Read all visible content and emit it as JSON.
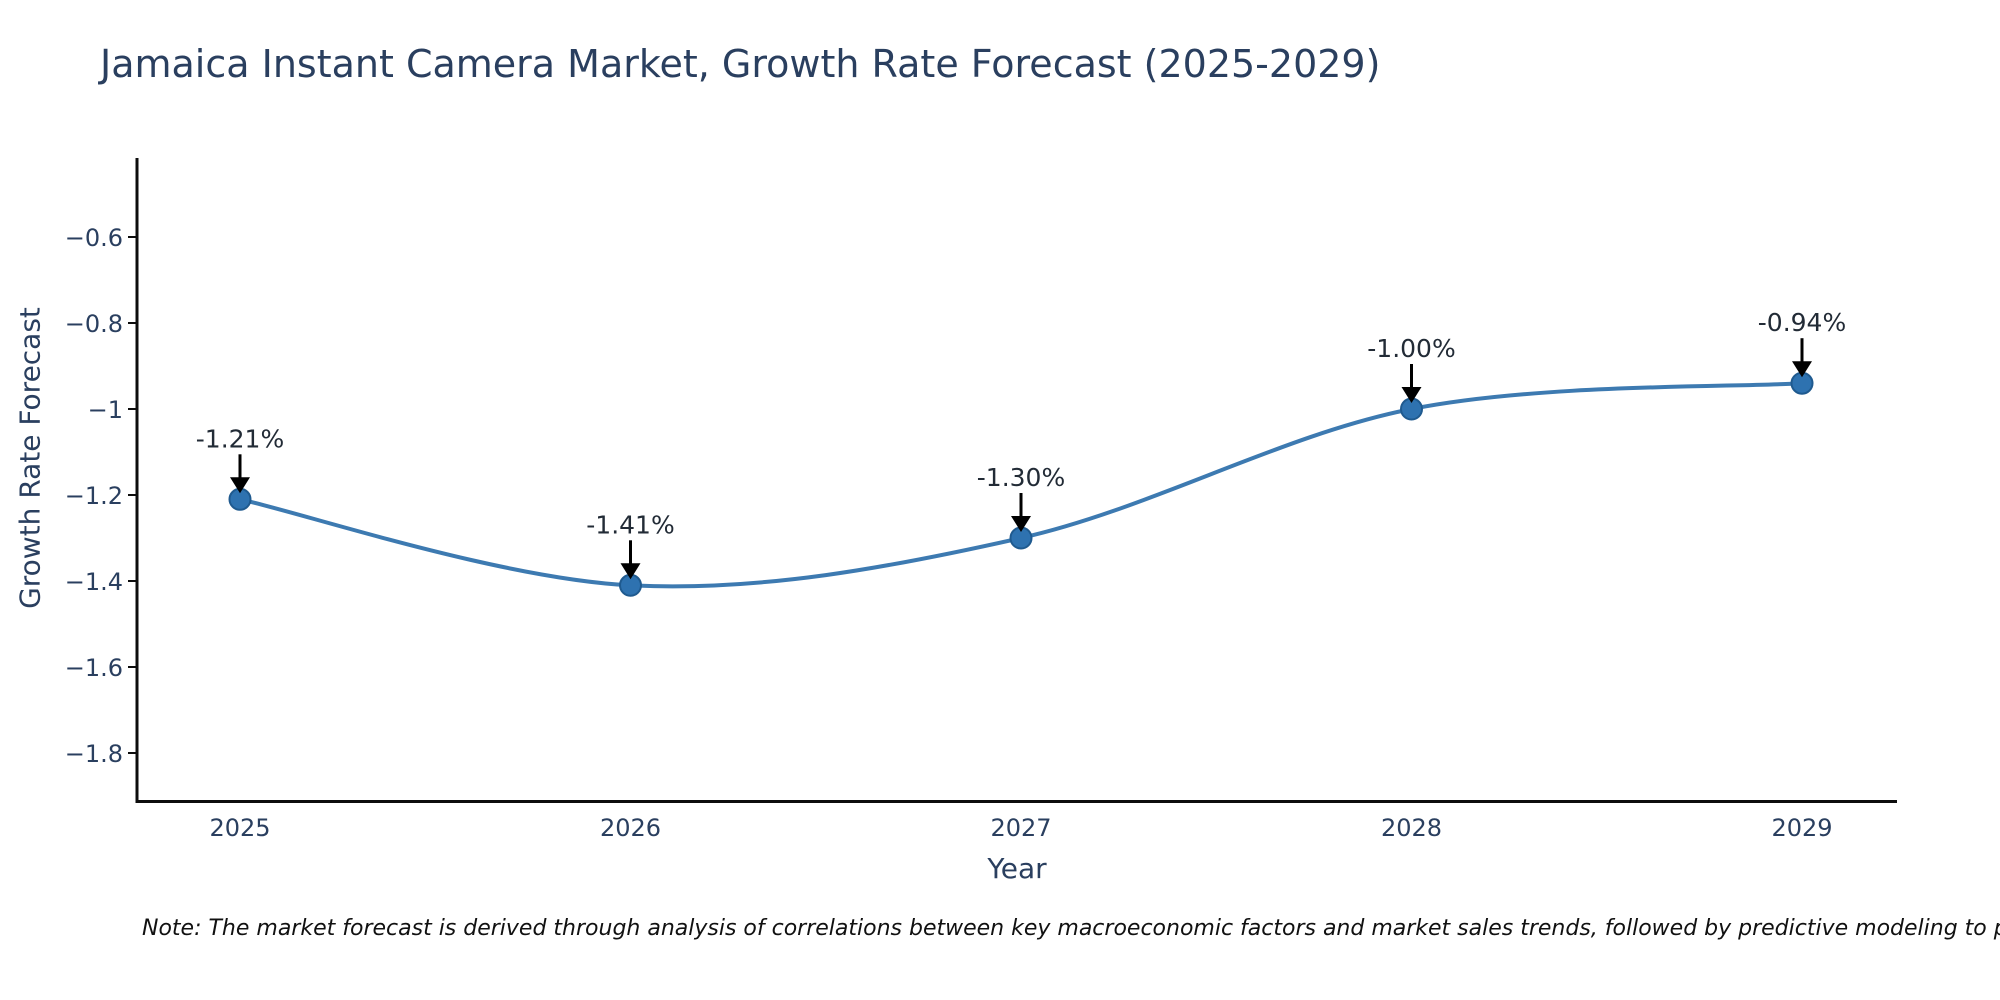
{
  "note": "Note: The market forecast is derived through analysis of correlations between key macroeconomic factors and market sales trends, followed by predictive modeling to project future sa",
  "chart_data": {
    "type": "line",
    "title": "Jamaica Instant Camera Market, Growth Rate Forecast (2025-2029)",
    "xlabel": "Year",
    "ylabel": "Growth Rate Forecast",
    "curve": "spline",
    "grid": false,
    "legend": "none",
    "x": [
      2025,
      2026,
      2027,
      2028,
      2029
    ],
    "values": [
      -1.21,
      -1.41,
      -1.3,
      -1.0,
      -0.94
    ],
    "point_labels": [
      "-1.21%",
      "-1.41%",
      "-1.30%",
      "-1.00%",
      "-0.94%"
    ],
    "xtick_labels": [
      "2025",
      "2026",
      "2027",
      "2028",
      "2029"
    ],
    "yticks": [
      {
        "label": "−0.6",
        "value": -0.6
      },
      {
        "label": "−0.8",
        "value": -0.8
      },
      {
        "label": "−1",
        "value": -1.0
      },
      {
        "label": "−1.2",
        "value": -1.2
      },
      {
        "label": "−1.4",
        "value": -1.4
      },
      {
        "label": "−1.6",
        "value": -1.6
      },
      {
        "label": "−1.8",
        "value": -1.8
      }
    ],
    "ylim": [
      -1.91,
      -0.43
    ],
    "colors": {
      "line": "#3d7ab1",
      "marker_fill": "#2e72b0",
      "marker_edge": "#1f5a8f",
      "axis": "#0d0d0d",
      "tick_text": "#2a3f5f",
      "annotation_text": "#222b36",
      "arrow": "#000000"
    }
  }
}
